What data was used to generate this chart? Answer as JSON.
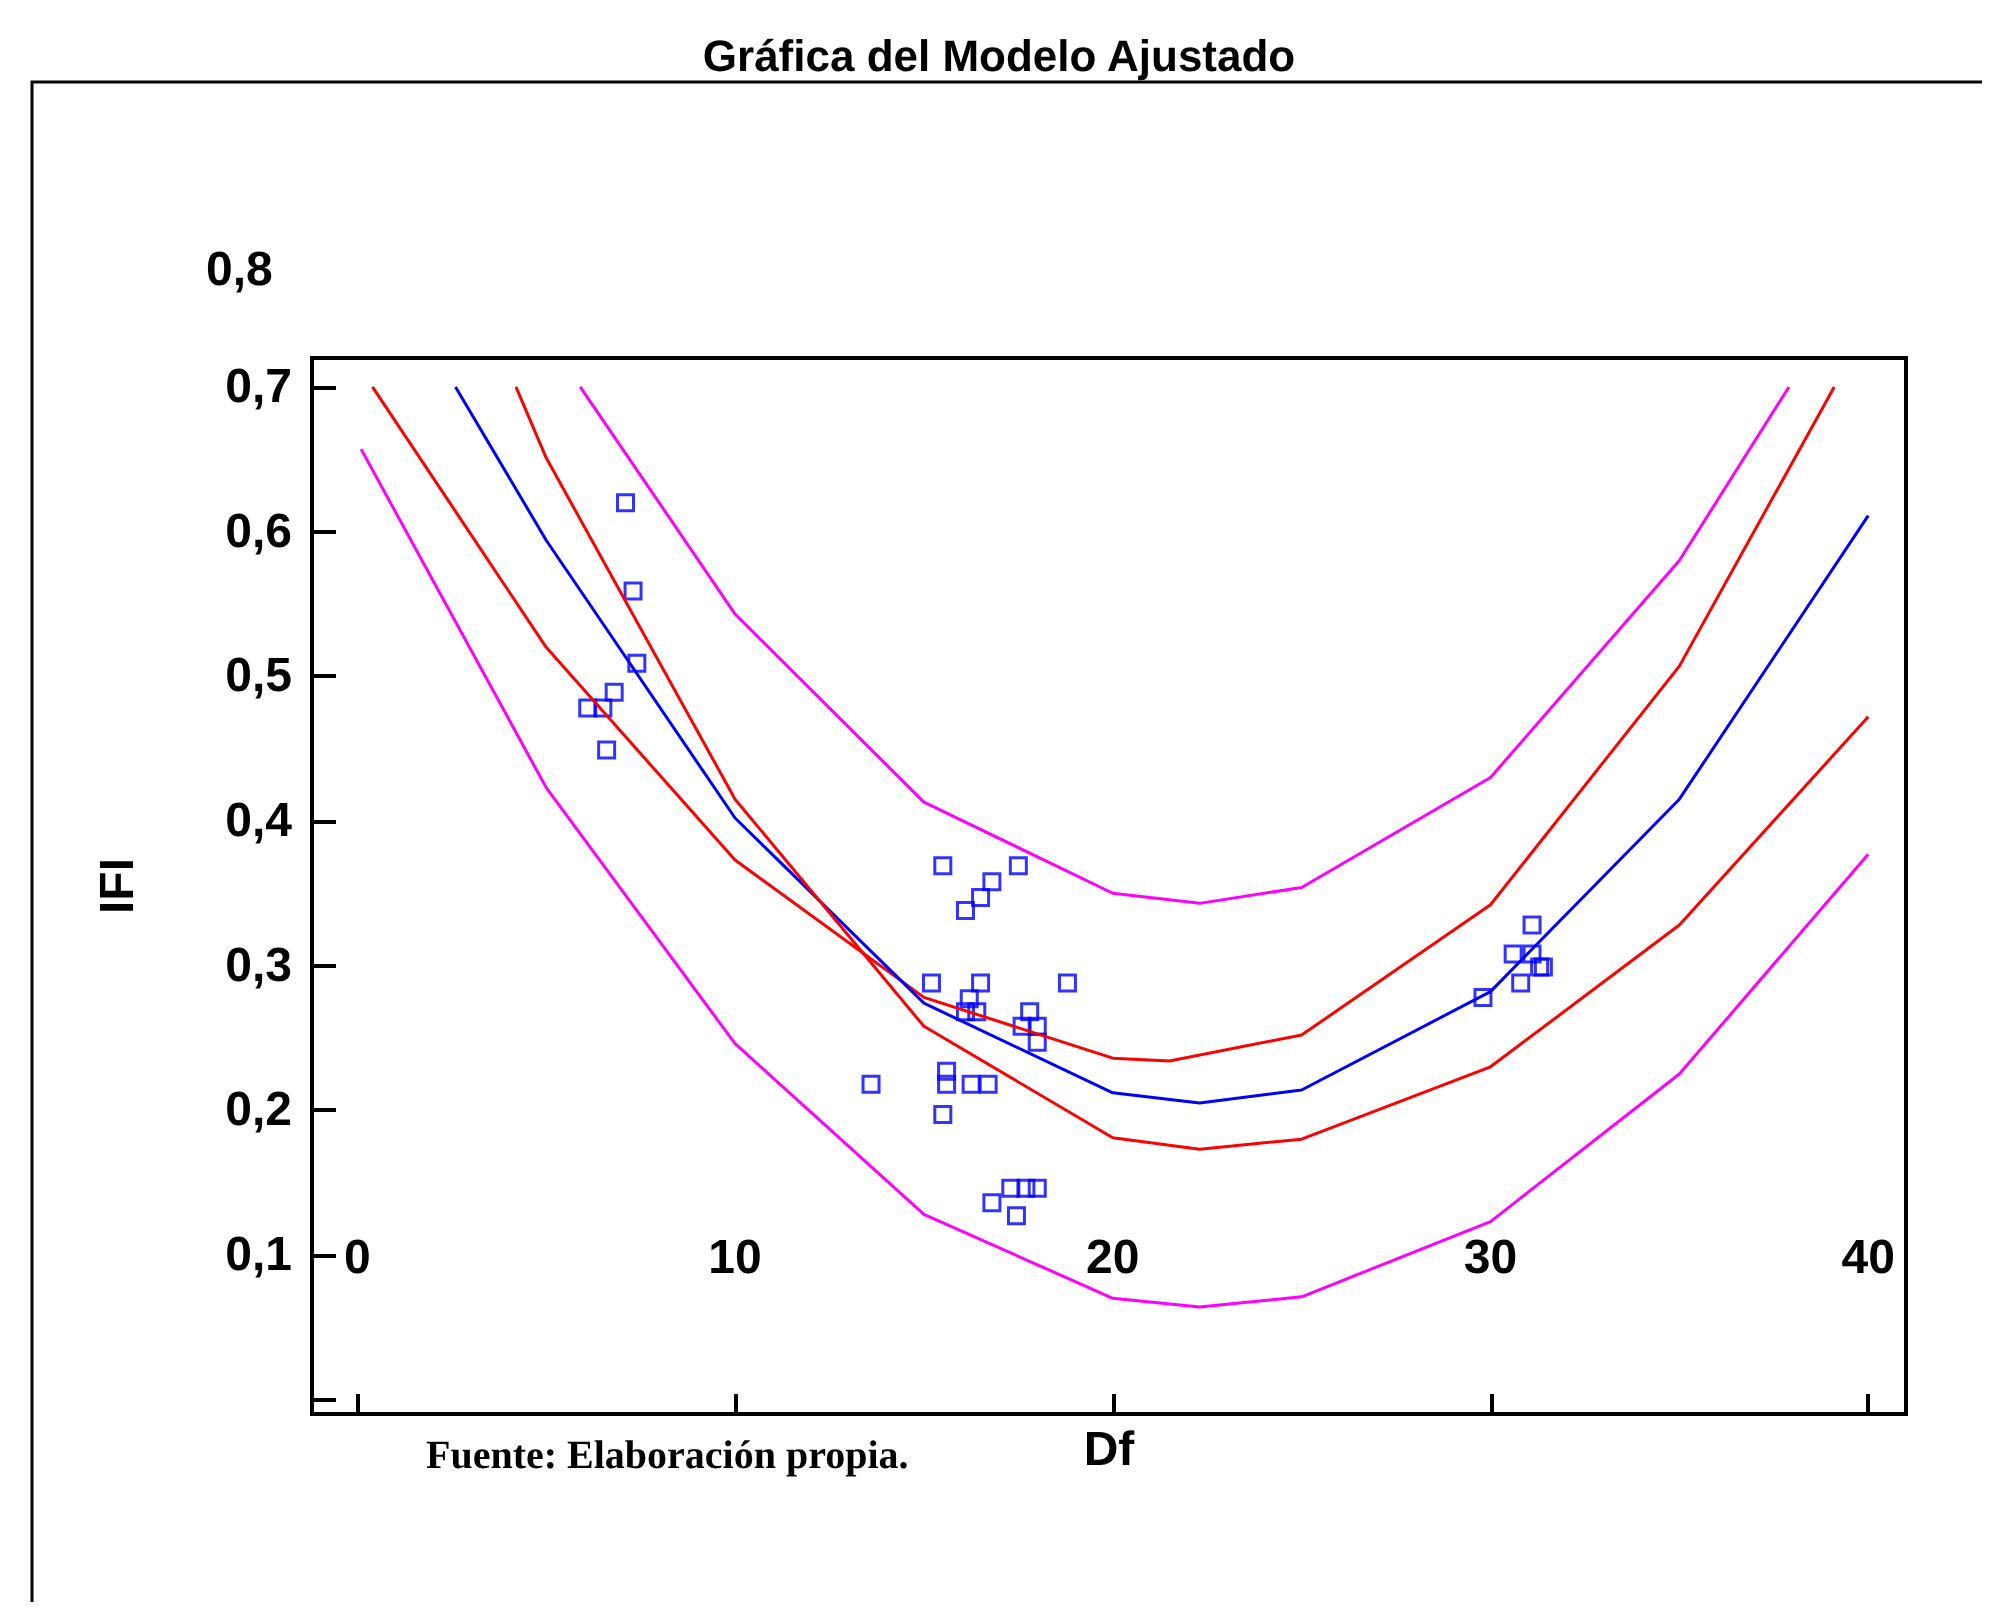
{
  "chart_data": {
    "type": "scatter",
    "title": "Gráfica del Modelo Ajustado",
    "xlabel": "Df",
    "ylabel": "IFI",
    "annotations": [
      "0,8",
      "Fuente: Elaboración propia."
    ],
    "xlim": [
      -1.2,
      41
    ],
    "xticks": [
      0,
      10,
      20,
      30,
      40
    ],
    "ylim": [
      -0.01,
      0.72
    ],
    "yticks": [
      {
        "value": 0,
        "label": null
      },
      {
        "value": 0.1,
        "label": "0,1"
      },
      {
        "value": 0.2,
        "label": "0,2"
      },
      {
        "value": 0.3,
        "label": "0,3"
      },
      {
        "value": 0.4,
        "label": "0,4"
      },
      {
        "value": 0.5,
        "label": "0,5"
      },
      {
        "value": 0.6,
        "label": "0,6"
      },
      {
        "value": 0.7,
        "label": "0,7"
      }
    ],
    "grid": false,
    "series": [
      {
        "marker": "square",
        "color": "#0000ff",
        "x": [
          6.1,
          6.5,
          6.8,
          6.6,
          7.1,
          7.3,
          7.4,
          13.6,
          15.2,
          15.5,
          15.6,
          15.6,
          15.5,
          16.1,
          16.2,
          16.1,
          16.4,
          16.5,
          16.25,
          16.5,
          16.8,
          16.7,
          16.8,
          17.5,
          17.3,
          17.45,
          17.6,
          17.8,
          17.7,
          18.0,
          18.0,
          18.0,
          18.8,
          29.8,
          30.6,
          30.8,
          31.1,
          31.1,
          31.3,
          31.4
        ],
        "values": [
          0.478,
          0.478,
          0.489,
          0.449,
          0.62,
          0.559,
          0.509,
          0.218,
          0.288,
          0.369,
          0.227,
          0.218,
          0.197,
          0.338,
          0.277,
          0.268,
          0.268,
          0.288,
          0.218,
          0.347,
          0.358,
          0.218,
          0.136,
          0.369,
          0.146,
          0.127,
          0.258,
          0.268,
          0.146,
          0.247,
          0.258,
          0.146,
          0.288,
          0.278,
          0.308,
          0.288,
          0.328,
          0.308,
          0.299,
          0.299
        ]
      },
      {
        "type": "line",
        "marker": "none",
        "color": "#ff00ff",
        "x": [
          5.9,
          10,
          15,
          20,
          22.3,
          25,
          30,
          35,
          37.9
        ],
        "values": [
          0.7,
          0.543,
          0.413,
          0.35,
          0.343,
          0.354,
          0.43,
          0.58,
          0.7
        ]
      },
      {
        "type": "line",
        "marker": "none",
        "color": "#ff0000",
        "x": [
          0.4,
          5,
          10,
          15,
          20,
          21.5,
          25,
          30,
          35,
          39.1
        ],
        "values": [
          0.7,
          0.52,
          0.373,
          0.278,
          0.236,
          0.234,
          0.252,
          0.342,
          0.507,
          0.7
        ]
      },
      {
        "type": "line",
        "marker": "none",
        "color": "#0000ff",
        "x": [
          2.6,
          5,
          10,
          15,
          20,
          22.3,
          25,
          30,
          35,
          40
        ],
        "values": [
          0.7,
          0.594,
          0.402,
          0.274,
          0.212,
          0.205,
          0.214,
          0.282,
          0.415,
          0.611
        ]
      },
      {
        "type": "line",
        "marker": "none",
        "color": "#ff0000",
        "x": [
          4.2,
          5,
          10,
          15,
          20,
          22.3,
          25,
          30,
          35,
          40
        ],
        "values": [
          0.7,
          0.651,
          0.415,
          0.258,
          0.181,
          0.173,
          0.18,
          0.23,
          0.328,
          0.472
        ]
      },
      {
        "type": "line",
        "marker": "none",
        "color": "#ff00ff",
        "x": [
          0.1,
          5,
          10,
          15,
          20,
          22.3,
          25,
          30,
          35,
          40
        ],
        "values": [
          0.657,
          0.423,
          0.246,
          0.128,
          0.07,
          0.064,
          0.071,
          0.123,
          0.225,
          0.377
        ]
      }
    ]
  }
}
